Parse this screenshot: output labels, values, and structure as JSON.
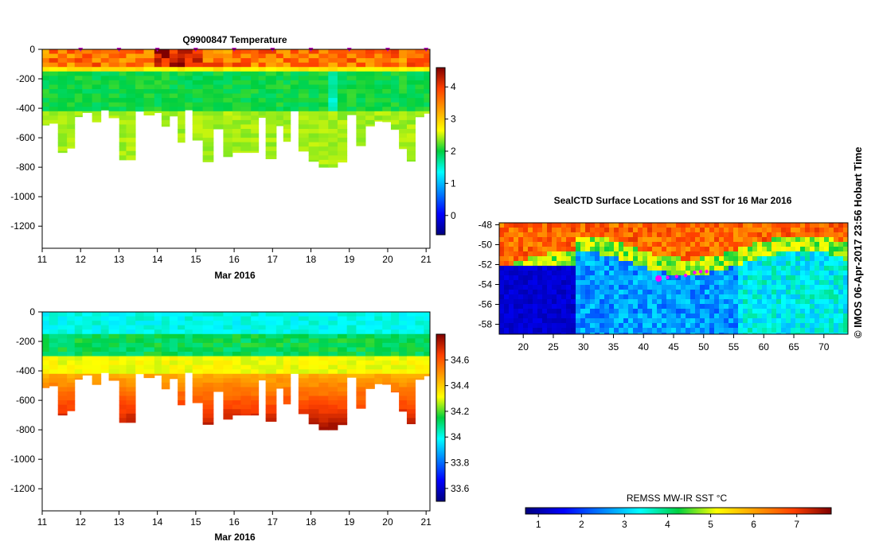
{
  "chart_data": [
    {
      "type": "heatmap",
      "title": "Q9900847  Temperature",
      "xlabel": "Mar 2016",
      "ylabel": "",
      "xlim": [
        11,
        21.1
      ],
      "ylim": [
        -1350,
        0
      ],
      "x_ticks": [
        "11",
        "12",
        "13",
        "14",
        "15",
        "16",
        "17",
        "18",
        "19",
        "20",
        "21"
      ],
      "y_ticks": [
        "0",
        "-200",
        "-400",
        "-600",
        "-800",
        "-1000",
        "-1200"
      ],
      "colorbar_range": [
        -0.6,
        4.6
      ],
      "colorbar_ticks": [
        "0",
        "1",
        "2",
        "3",
        "4"
      ],
      "profile_day_markers": [
        12,
        13,
        14,
        15,
        16,
        17,
        18,
        19,
        20,
        21
      ]
    },
    {
      "type": "heatmap",
      "title": "",
      "xlabel": "Mar 2016",
      "ylabel": "",
      "xlim": [
        11,
        21.1
      ],
      "ylim": [
        -1350,
        0
      ],
      "x_ticks": [
        "11",
        "12",
        "13",
        "14",
        "15",
        "16",
        "17",
        "18",
        "19",
        "20",
        "21"
      ],
      "y_ticks": [
        "0",
        "-200",
        "-400",
        "-600",
        "-800",
        "-1000",
        "-1200"
      ],
      "colorbar_range": [
        33.5,
        34.8
      ],
      "colorbar_ticks": [
        "33.6",
        "33.8",
        "34",
        "34.2",
        "34.4",
        "34.6"
      ]
    },
    {
      "type": "heatmap",
      "title": "SealCTD Surface Locations and SST for 16 Mar 2016",
      "xlim": [
        16,
        74
      ],
      "ylim": [
        -59,
        -47.8
      ],
      "x_ticks": [
        "20",
        "25",
        "30",
        "35",
        "40",
        "45",
        "50",
        "55",
        "60",
        "65",
        "70"
      ],
      "y_ticks": [
        "-48",
        "-50",
        "-52",
        "-54",
        "-56",
        "-58"
      ],
      "track": [
        {
          "lon": 42.5,
          "lat": -53.4
        },
        {
          "lon": 44.0,
          "lat": -53.3
        },
        {
          "lon": 45.5,
          "lat": -53.2
        },
        {
          "lon": 47.0,
          "lat": -53.1
        },
        {
          "lon": 48.5,
          "lat": -52.8
        },
        {
          "lon": 49.5,
          "lat": -52.7
        },
        {
          "lon": 50.5,
          "lat": -52.7
        }
      ],
      "colorbar_label": "REMSS MW-IR SST °C",
      "colorbar_ticks": [
        "1",
        "2",
        "3",
        "4",
        "5",
        "6",
        "7"
      ],
      "colorbar_range": [
        0.7,
        7.8
      ]
    }
  ],
  "credit": "© IMOS 06-Apr-2017 23:56 Hobart Time"
}
